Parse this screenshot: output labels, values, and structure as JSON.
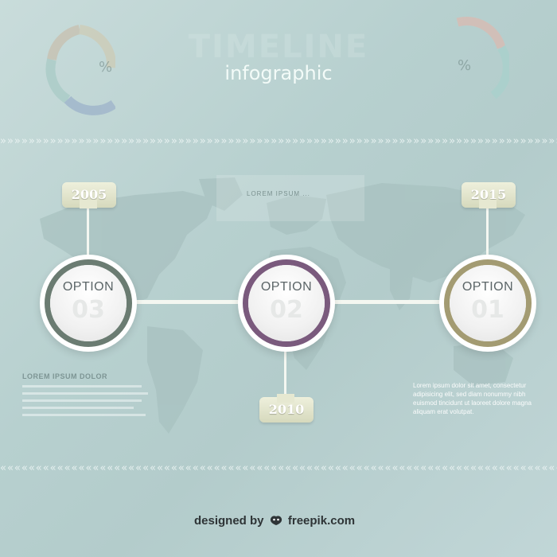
{
  "header": {
    "title": "TIMELINE",
    "subtitle": "infographic"
  },
  "donuts": {
    "left_percent": "%",
    "right_percent": "%"
  },
  "divider": {
    "top_glyph": "»",
    "bottom_glyph": "«"
  },
  "center_panel": {
    "text": "LOREM IPSUM ..."
  },
  "timeline": {
    "options": [
      {
        "label": "OPTION",
        "number": "03",
        "year": "2005",
        "ring_color": "#6b7c72"
      },
      {
        "label": "OPTION",
        "number": "02",
        "year": "2010",
        "ring_color": "#7a5a7d"
      },
      {
        "label": "OPTION",
        "number": "01",
        "year": "2015",
        "ring_color": "#a39b72"
      }
    ]
  },
  "left_block": {
    "heading": "LOREM IPSUM DOLOR"
  },
  "right_block": {
    "text": "Lorem ipsum dolor sit amet, consectetur adipisicing elit, sed diam nonummy nibh euismod tincidunt ut laoreet dolore magna aliquam erat volutpat."
  },
  "footer": {
    "designed_by": "designed by",
    "brand": "freepik.com"
  },
  "colors": {
    "background": "#b7d0cf",
    "connector": "#f4f7f1",
    "tag": "#e3e5ca"
  }
}
